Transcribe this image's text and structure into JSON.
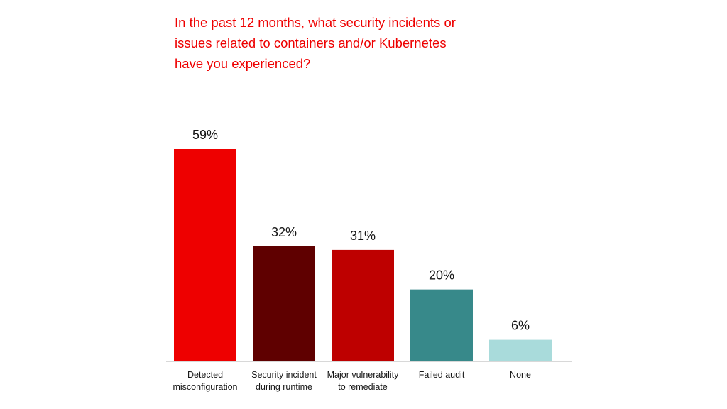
{
  "chart_data": {
    "type": "bar",
    "title": "In the past 12 months, what security incidents or\nissues related to containers and/or Kubernetes\nhave you experienced?",
    "xlabel": "",
    "ylabel": "",
    "ylim": [
      0,
      59
    ],
    "grid": false,
    "legend": "none",
    "unit": "%",
    "categories": [
      [
        "Detected",
        "misconfiguration"
      ],
      [
        "Security incident",
        "during runtime"
      ],
      [
        "Major vulnerability",
        "to remediate"
      ],
      [
        "Failed audit"
      ],
      [
        "None"
      ]
    ],
    "values": [
      59,
      32,
      31,
      20,
      6
    ],
    "value_labels": [
      "59%",
      "32%",
      "31%",
      "20%",
      "6%"
    ],
    "colors": [
      "#ee0000",
      "#5f0000",
      "#be0000",
      "#37898a",
      "#a9dbdb"
    ]
  }
}
